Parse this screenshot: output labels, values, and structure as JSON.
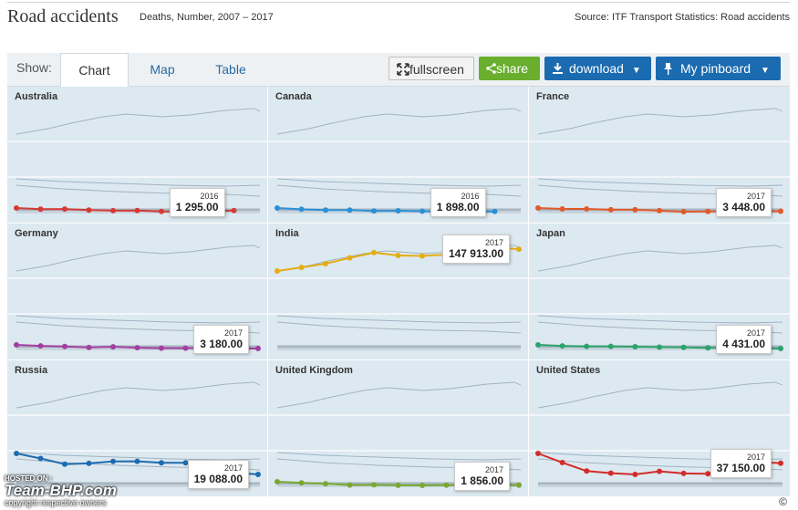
{
  "header": {
    "title": "Road accidents",
    "subtitle": "Deaths, Number, 2007 – 2017",
    "source": "Source: ITF Transport Statistics: Road accidents"
  },
  "toolbar": {
    "show_label": "Show:",
    "tabs": [
      "Chart",
      "Map",
      "Table"
    ],
    "active_tab": "Chart",
    "fullscreen": "fullscreen",
    "share": "share",
    "download": "download",
    "pinboard": "My pinboard"
  },
  "footer": {
    "copyright": "©",
    "watermark_hosted": "HOSTED ON :",
    "watermark_brand": "Team-BHP.com",
    "watermark_owners": "copyright respective owners"
  },
  "colors": {
    "panel_bg": "#dde9f0",
    "background_lines": "#9fb3c3",
    "tab_link": "#2a6aa3",
    "share_button": "#6aae2e",
    "action_button": "#1b6bb0"
  },
  "chart_data": {
    "type": "line",
    "layout": "small-multiples",
    "x": [
      2007,
      2008,
      2009,
      2010,
      2011,
      2012,
      2013,
      2014,
      2015,
      2016,
      2017
    ],
    "series": [
      {
        "name": "Australia",
        "color": "#d43b36",
        "tooltip_year": "2016",
        "tooltip_value": "1 295.00",
        "values": [
          1616,
          1464,
          1491,
          1352,
          1277,
          1300,
          1187,
          1151,
          1205,
          1295,
          null
        ]
      },
      {
        "name": "Canada",
        "color": "#2b90d6",
        "tooltip_year": "2016",
        "tooltip_value": "1 898.00",
        "values": [
          2763,
          2431,
          2227,
          2237,
          2023,
          2077,
          1951,
          1834,
          1887,
          1898,
          null
        ]
      },
      {
        "name": "France",
        "color": "#e05a2a",
        "tooltip_year": "2017",
        "tooltip_value": "3 448.00",
        "values": [
          4620,
          4275,
          4273,
          3992,
          3963,
          3653,
          3268,
          3384,
          3461,
          3477,
          3448
        ]
      },
      {
        "name": "Germany",
        "color": "#a33fa1",
        "tooltip_year": "2017",
        "tooltip_value": "3 180.00",
        "values": [
          4949,
          4477,
          4152,
          3648,
          4009,
          3600,
          3339,
          3377,
          3459,
          3206,
          3180
        ]
      },
      {
        "name": "India",
        "color": "#e3ad15",
        "tooltip_year": "2017",
        "tooltip_value": "147 913.00",
        "values": [
          114444,
          119860,
          125660,
          134513,
          142485,
          138258,
          137572,
          139671,
          146133,
          150785,
          147913
        ]
      },
      {
        "name": "Japan",
        "color": "#2ba36c",
        "tooltip_year": "2017",
        "tooltip_value": "4 431.00",
        "values": [
          6639,
          6023,
          5772,
          5745,
          5535,
          5261,
          5165,
          4838,
          4885,
          4698,
          4431
        ]
      },
      {
        "name": "Russia",
        "color": "#1f6bb0",
        "tooltip_year": "2017",
        "tooltip_value": "19 088.00",
        "values": [
          33308,
          29936,
          26084,
          26567,
          27953,
          27991,
          27025,
          26963,
          23114,
          20308,
          19088
        ]
      },
      {
        "name": "United Kingdom",
        "color": "#79a832",
        "tooltip_year": "2017",
        "tooltip_value": "1 856.00",
        "values": [
          3059,
          2645,
          2337,
          1905,
          1960,
          1802,
          1770,
          1854,
          1804,
          1860,
          1856
        ]
      },
      {
        "name": "United States",
        "color": "#d22d2a",
        "tooltip_year": "2017",
        "tooltip_value": "37 150.00",
        "values": [
          41259,
          37423,
          33883,
          32999,
          32479,
          33782,
          32893,
          32744,
          35485,
          37806,
          37150
        ]
      }
    ]
  }
}
